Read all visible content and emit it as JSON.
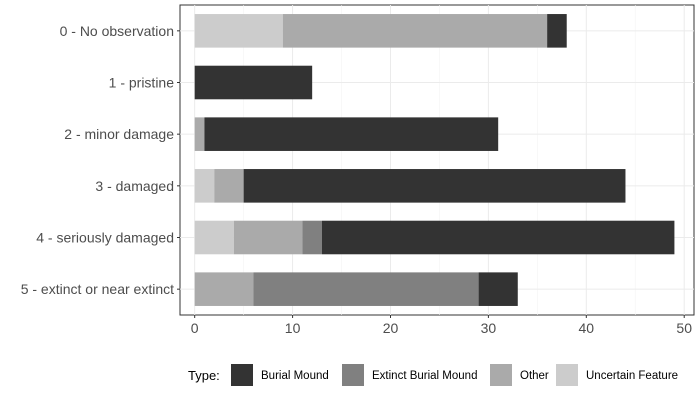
{
  "chart_data": {
    "type": "bar",
    "orientation": "horizontal",
    "stacked": true,
    "title": "",
    "xlabel": "",
    "ylabel": "",
    "xlim": [
      -1.5,
      51
    ],
    "xticks": [
      0,
      10,
      20,
      30,
      40,
      50
    ],
    "grid": true,
    "legend": {
      "title": "Type:",
      "position": "bottom"
    },
    "categories": [
      "0 - No observation",
      "1 - pristine",
      "2 - minor damage",
      "3 - damaged",
      "4 - seriously damaged",
      "5 - extinct or near extinct"
    ],
    "stack_order": [
      "Uncertain Feature",
      "Other",
      "Extinct Burial Mound",
      "Burial Mound"
    ],
    "series": [
      {
        "name": "Burial Mound",
        "color": "#333333",
        "values": [
          2,
          12,
          30,
          39,
          36,
          4
        ]
      },
      {
        "name": "Extinct Burial Mound",
        "color": "#808080",
        "values": [
          0,
          0,
          0,
          0,
          2,
          23
        ]
      },
      {
        "name": "Other",
        "color": "#aaaaaa",
        "values": [
          27,
          0,
          1,
          3,
          7,
          6
        ]
      },
      {
        "name": "Uncertain Feature",
        "color": "#cccccc",
        "values": [
          9,
          0,
          0,
          2,
          4,
          0
        ]
      }
    ]
  }
}
